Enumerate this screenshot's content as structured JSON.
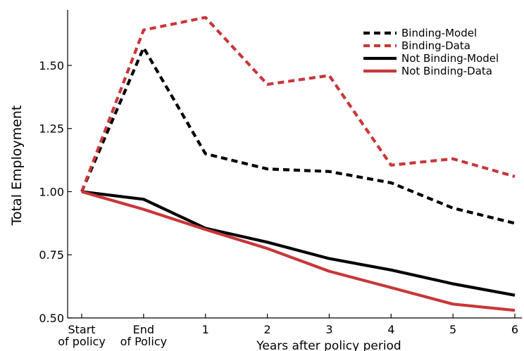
{
  "chart_data": {
    "type": "line",
    "title": "",
    "xlabel": "Years after policy period",
    "ylabel": "Total Employment",
    "x_categories": [
      [
        "Start",
        "of policy"
      ],
      [
        "End",
        "of Policy"
      ],
      [
        "1"
      ],
      [
        "2"
      ],
      [
        "3"
      ],
      [
        "4"
      ],
      [
        "5"
      ],
      [
        "6"
      ]
    ],
    "y_ticks": [
      "0.50",
      "0.75",
      "1.00",
      "1.25",
      "1.50"
    ],
    "y_tick_values": [
      0.5,
      0.75,
      1.0,
      1.25,
      1.5
    ],
    "ylim": [
      0.5,
      1.72
    ],
    "grid": false,
    "legend_position": "top-right",
    "series": [
      {
        "name": "Binding-Model",
        "color": "#000000",
        "style": "dashed",
        "values": [
          1.0,
          1.57,
          1.15,
          1.09,
          1.08,
          1.035,
          0.935,
          0.875
        ]
      },
      {
        "name": "Binding-Data",
        "color": "#c8373a",
        "style": "dashed",
        "values": [
          1.0,
          1.64,
          1.69,
          1.425,
          1.46,
          1.105,
          1.13,
          1.06
        ]
      },
      {
        "name": "Not Binding-Model",
        "color": "#000000",
        "style": "solid",
        "values": [
          1.0,
          0.97,
          0.855,
          0.8,
          0.735,
          0.69,
          0.635,
          0.59
        ]
      },
      {
        "name": "Not Binding-Data",
        "color": "#c8373a",
        "style": "solid",
        "values": [
          1.0,
          0.93,
          0.85,
          0.775,
          0.685,
          0.62,
          0.555,
          0.53
        ]
      }
    ]
  }
}
